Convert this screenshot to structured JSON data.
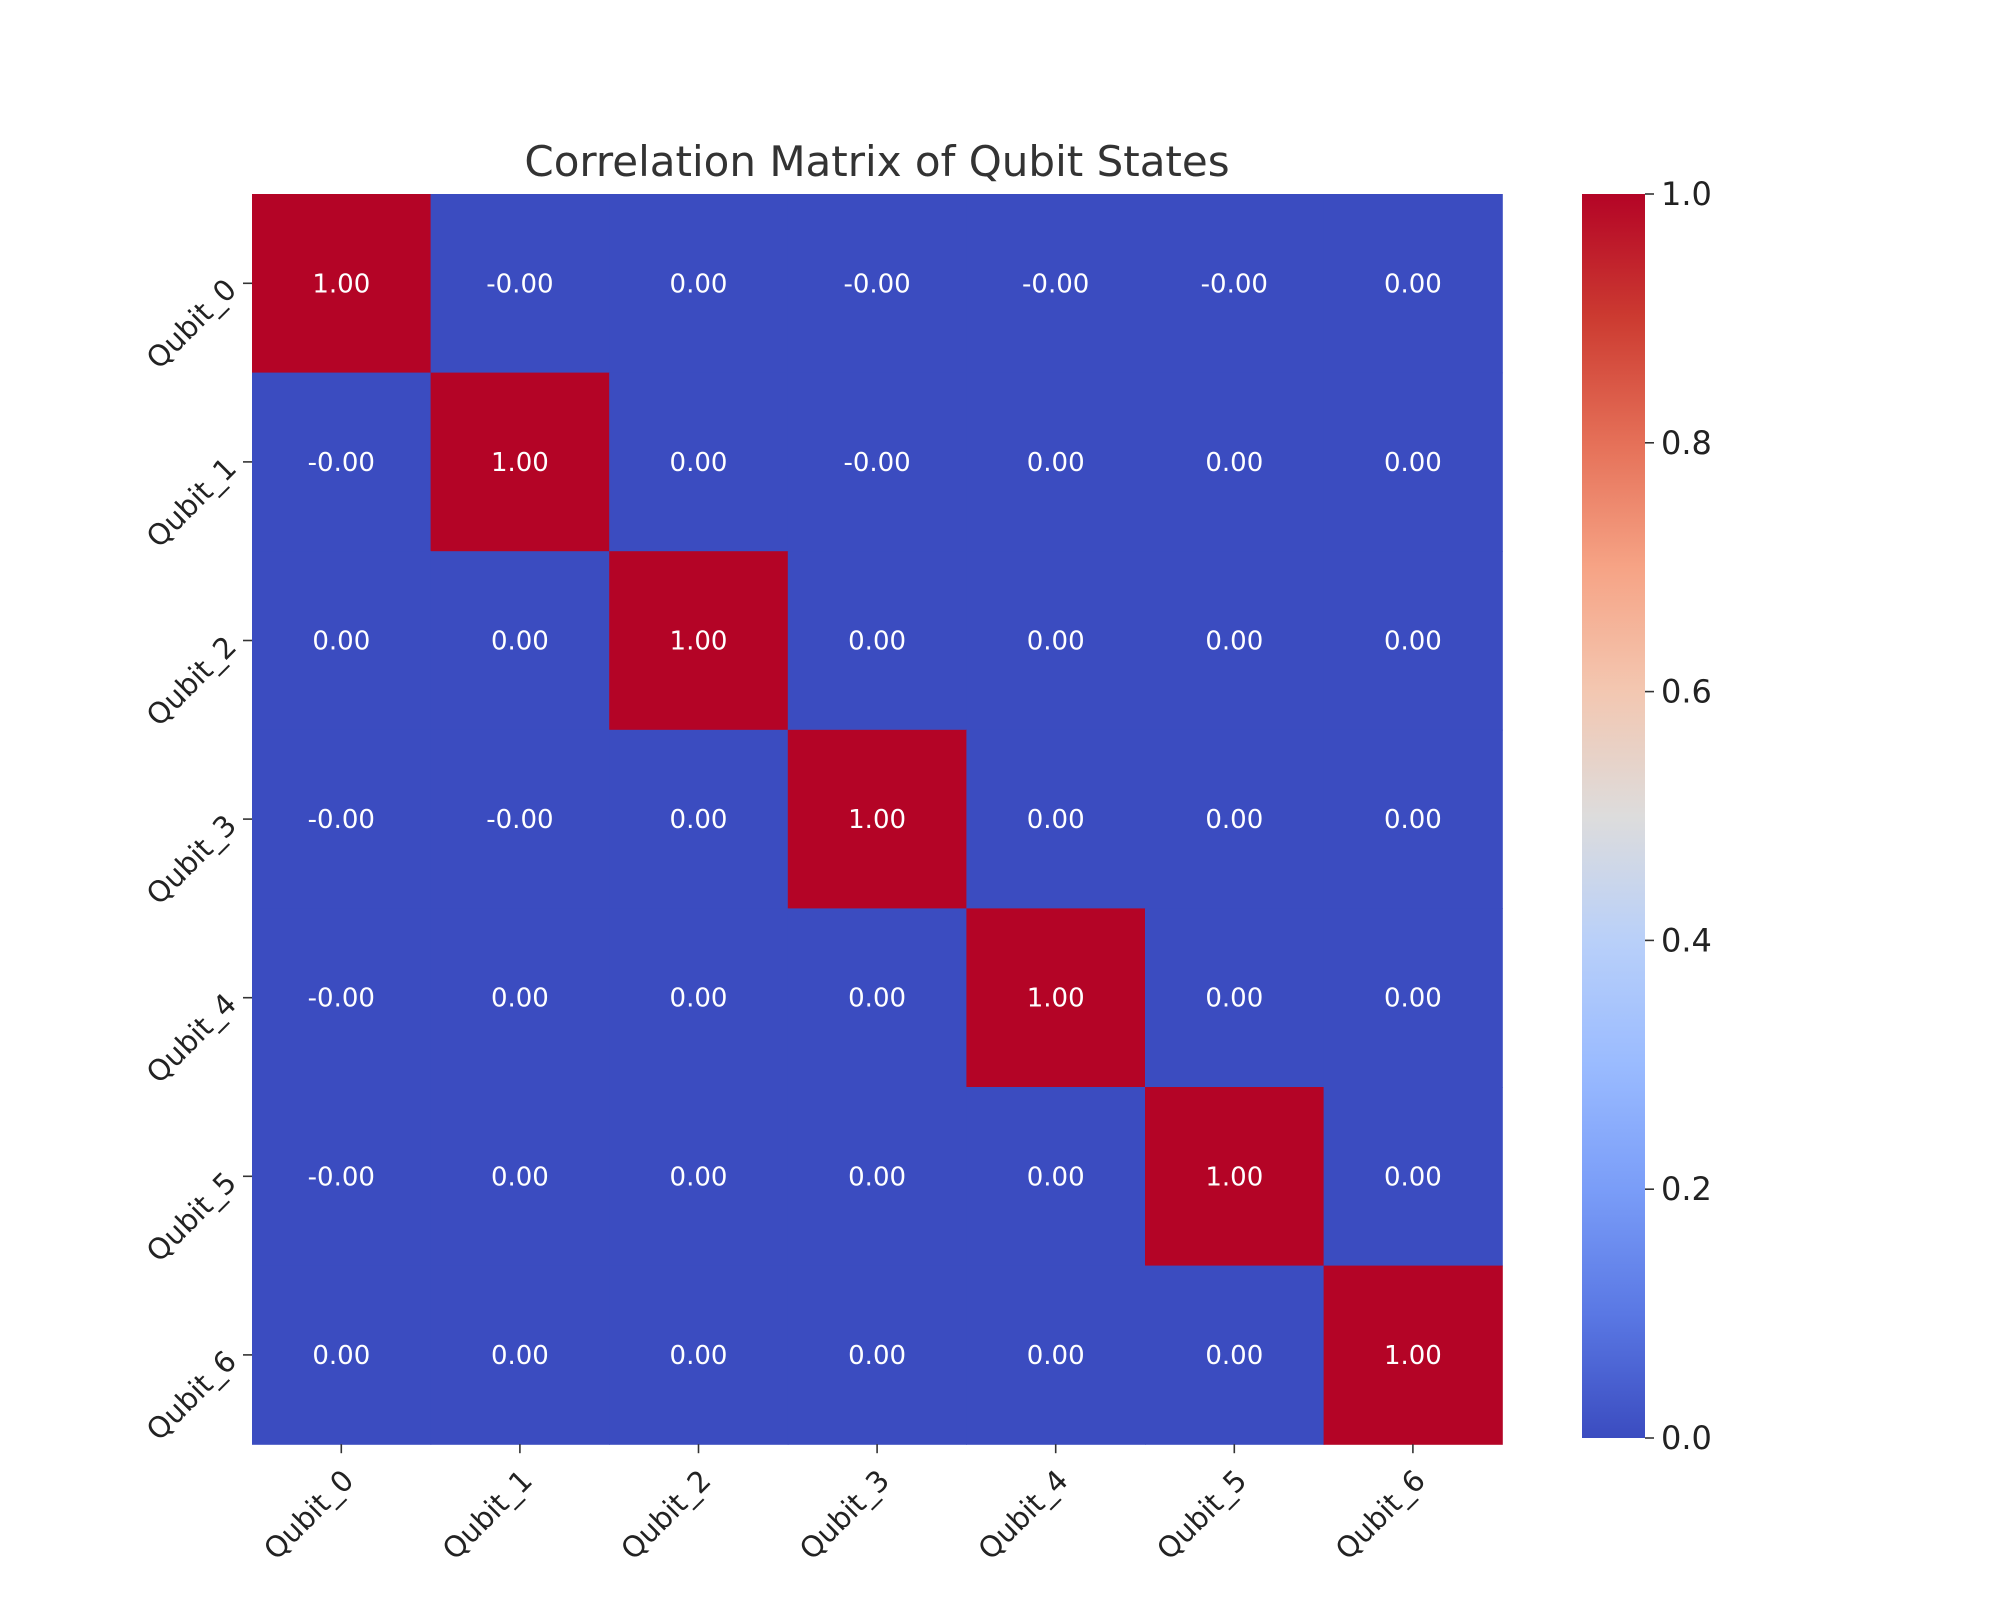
{
  "chart_data": {
    "type": "heatmap",
    "title": "Correlation Matrix of Qubit States",
    "xlabel": "",
    "ylabel": "",
    "x_categories": [
      "Qubit_0",
      "Qubit_1",
      "Qubit_2",
      "Qubit_3",
      "Qubit_4",
      "Qubit_5",
      "Qubit_6"
    ],
    "y_categories": [
      "Qubit_0",
      "Qubit_1",
      "Qubit_2",
      "Qubit_3",
      "Qubit_4",
      "Qubit_5",
      "Qubit_6"
    ],
    "values": [
      [
        1.0,
        -0.0,
        0.0,
        -0.0,
        -0.0,
        -0.0,
        0.0
      ],
      [
        -0.0,
        1.0,
        0.0,
        -0.0,
        0.0,
        0.0,
        0.0
      ],
      [
        0.0,
        0.0,
        1.0,
        0.0,
        0.0,
        0.0,
        0.0
      ],
      [
        -0.0,
        -0.0,
        0.0,
        1.0,
        0.0,
        0.0,
        0.0
      ],
      [
        -0.0,
        0.0,
        0.0,
        0.0,
        1.0,
        0.0,
        0.0
      ],
      [
        -0.0,
        0.0,
        0.0,
        0.0,
        0.0,
        1.0,
        0.0
      ],
      [
        0.0,
        0.0,
        0.0,
        0.0,
        0.0,
        0.0,
        1.0
      ]
    ],
    "cell_labels": [
      [
        "1.00",
        "-0.00",
        "0.00",
        "-0.00",
        "-0.00",
        "-0.00",
        "0.00"
      ],
      [
        "-0.00",
        "1.00",
        "0.00",
        "-0.00",
        "0.00",
        "0.00",
        "0.00"
      ],
      [
        "0.00",
        "0.00",
        "1.00",
        "0.00",
        "0.00",
        "0.00",
        "0.00"
      ],
      [
        "-0.00",
        "-0.00",
        "0.00",
        "1.00",
        "0.00",
        "0.00",
        "0.00"
      ],
      [
        "-0.00",
        "0.00",
        "0.00",
        "0.00",
        "1.00",
        "0.00",
        "0.00"
      ],
      [
        "-0.00",
        "0.00",
        "0.00",
        "0.00",
        "0.00",
        "1.00",
        "0.00"
      ],
      [
        "0.00",
        "0.00",
        "0.00",
        "0.00",
        "0.00",
        "0.00",
        "1.00"
      ]
    ],
    "colormap": "coolwarm",
    "color_range": [
      0.0,
      1.0
    ],
    "colorbar_ticks": [
      "0.0",
      "0.2",
      "0.4",
      "0.6",
      "0.8",
      "1.0"
    ],
    "colorbar_placement": "right",
    "grid": false,
    "colors": {
      "low": "#3b4cc0",
      "high": "#b40426"
    }
  }
}
